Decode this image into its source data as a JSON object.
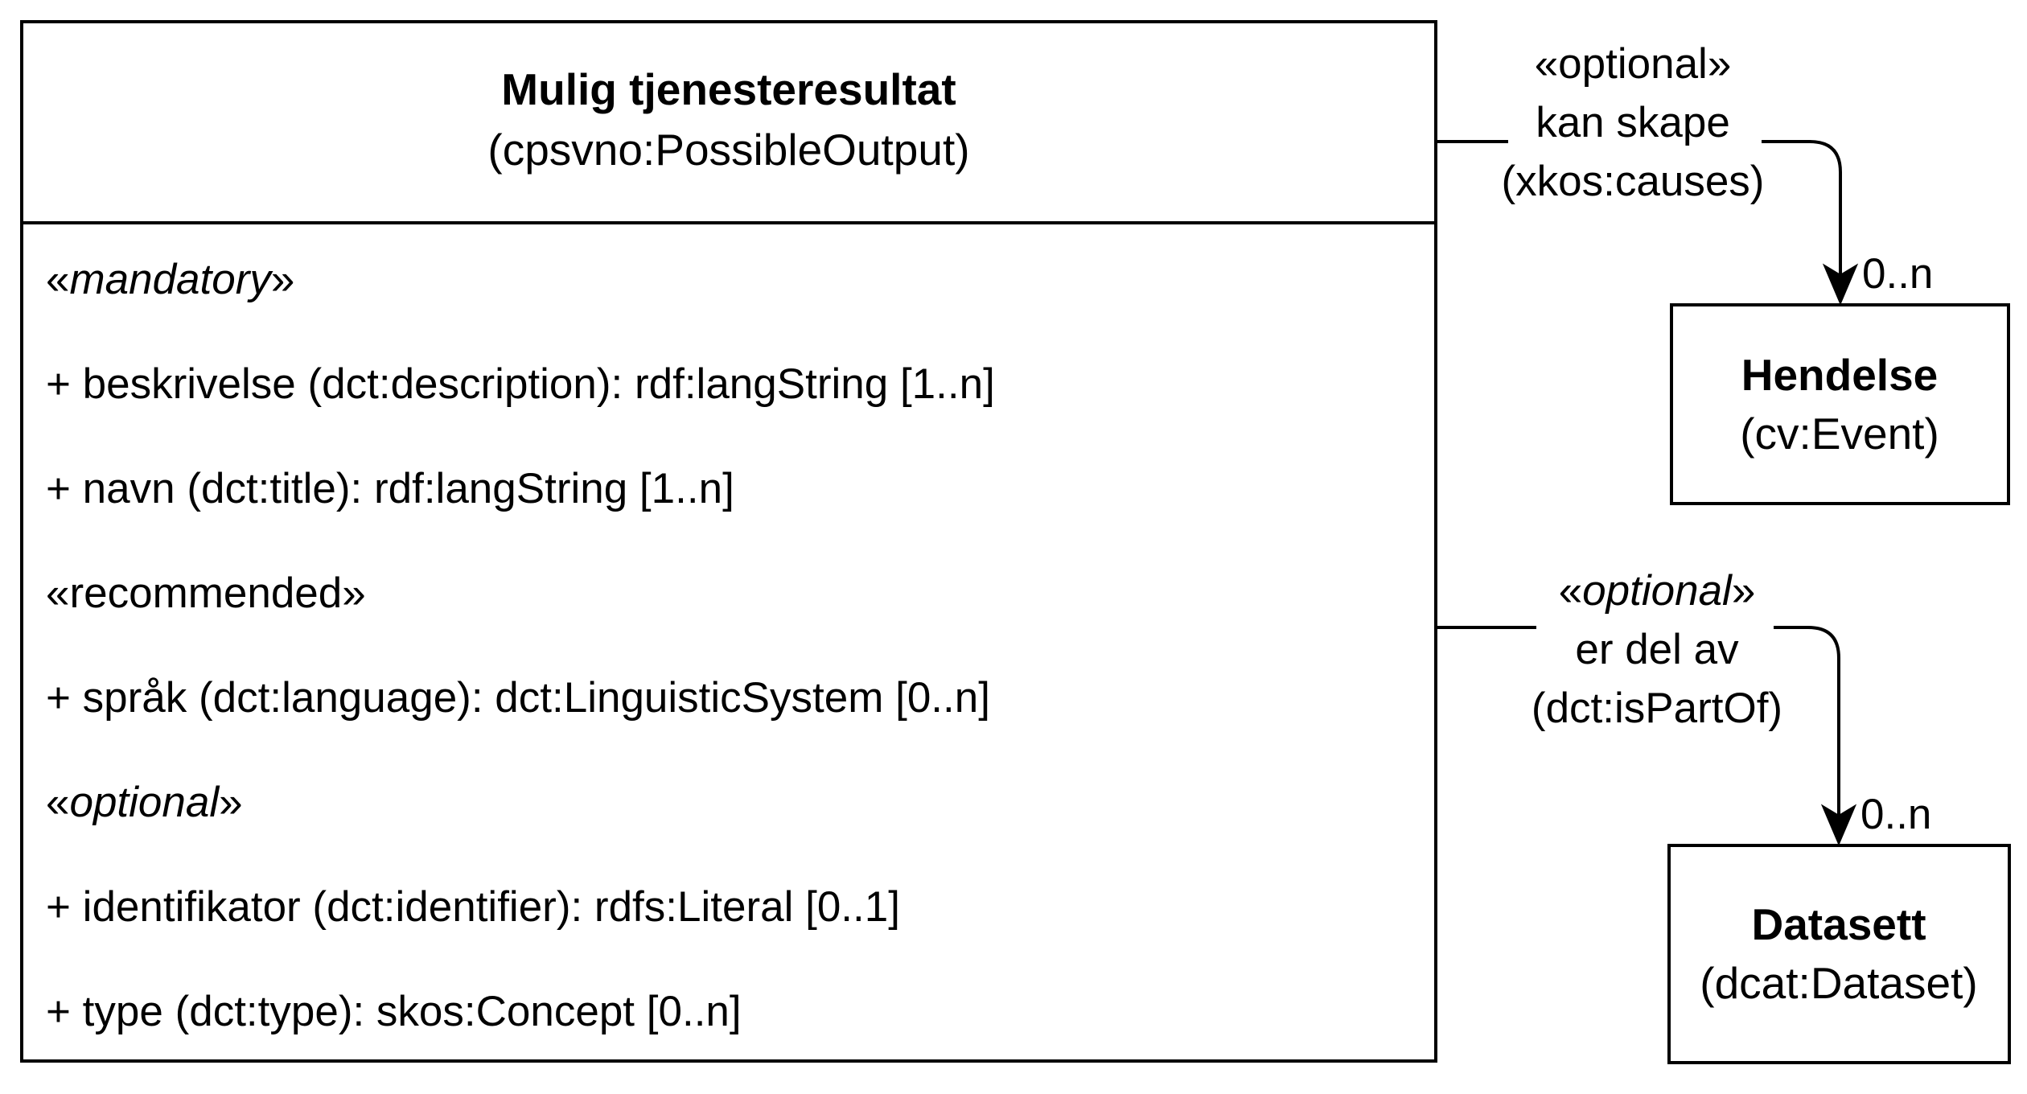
{
  "main_class": {
    "name": "Mulig tjenesteresultat",
    "uri": "(cpsvno:PossibleOutput)",
    "mandatory_prefix": "«",
    "mandatory_word": "mandatory",
    "mandatory_suffix": "»",
    "recommended_label": "«recommended»",
    "optional_prefix": "«",
    "optional_word": "optional",
    "optional_suffix": "»",
    "attributes": {
      "beskrivelse": "+ beskrivelse (dct:description): rdf:langString [1..n]",
      "navn": "+ navn (dct:title): rdf:langString [1..n]",
      "sprak": "+ språk (dct:language): dct:LinguisticSystem [0..n]",
      "identifikator": "+ identifikator (dct:identifier): rdfs:Literal [0..1]",
      "type": "+ type (dct:type): skos:Concept [0..n]"
    }
  },
  "relations": {
    "causes": {
      "stereotype": "«optional»",
      "name": "kan skape",
      "uri": "(xkos:causes)",
      "multiplicity": "0..n"
    },
    "is_part_of": {
      "stereotype_prefix": "«",
      "stereotype_word": "optional",
      "stereotype_suffix": "»",
      "name": "er del av",
      "uri": "(dct:isPartOf)",
      "multiplicity": "0..n"
    }
  },
  "targets": {
    "hendelse": {
      "name": "Hendelse",
      "uri": "(cv:Event)"
    },
    "datasett": {
      "name": "Datasett",
      "uri": "(dcat:Dataset)"
    }
  }
}
